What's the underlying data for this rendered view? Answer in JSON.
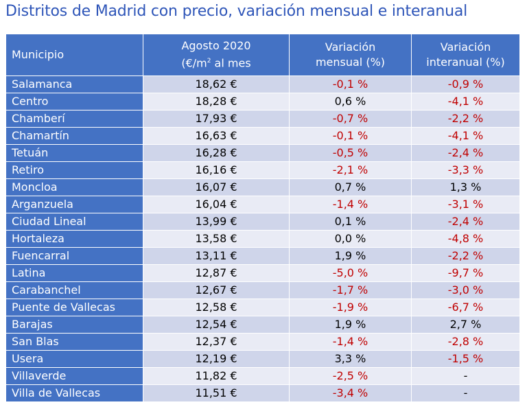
{
  "title": "Distritos de Madrid con precio, variación mensual e interanual",
  "colors": {
    "header_bg": "#4472c4",
    "row_odd_bg": "#cfd5ea",
    "row_even_bg": "#e9ebf5",
    "negative_text": "#c00000",
    "title_text": "#2e55b8"
  },
  "headers": {
    "municipio": "Municipio",
    "precio_line1": "Agosto 2020",
    "precio_line2_pre": "(€/m",
    "precio_line2_sup": "2",
    "precio_line2_post": " al mes",
    "mensual_line1": "Variación",
    "mensual_line2": "mensual (%)",
    "interanual_line1": "Variación",
    "interanual_line2": "interanual (%)"
  },
  "rows": [
    {
      "municipio": "Salamanca",
      "precio": "18,62 €",
      "mensual": "-0,1 %",
      "interanual": "-0,9 %"
    },
    {
      "municipio": "Centro",
      "precio": "18,28 €",
      "mensual": "0,6 %",
      "interanual": "-4,1 %"
    },
    {
      "municipio": "Chamberí",
      "precio": "17,93 €",
      "mensual": "-0,7 %",
      "interanual": "-2,2 %"
    },
    {
      "municipio": "Chamartín",
      "precio": "16,63 €",
      "mensual": "-0,1 %",
      "interanual": "-4,1 %"
    },
    {
      "municipio": "Tetuán",
      "precio": "16,28 €",
      "mensual": "-0,5 %",
      "interanual": "-2,4 %"
    },
    {
      "municipio": "Retiro",
      "precio": "16,16 €",
      "mensual": "-2,1 %",
      "interanual": "-3,3 %"
    },
    {
      "municipio": "Moncloa",
      "precio": "16,07 €",
      "mensual": "0,7 %",
      "interanual": "1,3 %"
    },
    {
      "municipio": "Arganzuela",
      "precio": "16,04 €",
      "mensual": "-1,4 %",
      "interanual": "-3,1 %"
    },
    {
      "municipio": "Ciudad Lineal",
      "precio": "13,99 €",
      "mensual": "0,1 %",
      "interanual": "-2,4 %"
    },
    {
      "municipio": "Hortaleza",
      "precio": "13,58 €",
      "mensual": "0,0 %",
      "interanual": "-4,8 %"
    },
    {
      "municipio": "Fuencarral",
      "precio": "13,11 €",
      "mensual": "1,9 %",
      "interanual": "-2,2 %"
    },
    {
      "municipio": "Latina",
      "precio": "12,87 €",
      "mensual": "-5,0 %",
      "interanual": "-9,7 %"
    },
    {
      "municipio": "Carabanchel",
      "precio": "12,67 €",
      "mensual": "-1,7 %",
      "interanual": "-3,0 %"
    },
    {
      "municipio": "Puente de Vallecas",
      "precio": "12,58 €",
      "mensual": "-1,9 %",
      "interanual": "-6,7 %"
    },
    {
      "municipio": "Barajas",
      "precio": "12,54 €",
      "mensual": "1,9 %",
      "interanual": "2,7 %"
    },
    {
      "municipio": "San Blas",
      "precio": "12,37 €",
      "mensual": "-1,4 %",
      "interanual": "-2,8 %"
    },
    {
      "municipio": "Usera",
      "precio": "12,19 €",
      "mensual": "3,3 %",
      "interanual": "-1,5 %"
    },
    {
      "municipio": "Villaverde",
      "precio": "11,82 €",
      "mensual": "-2,5 %",
      "interanual": "-"
    },
    {
      "municipio": "Villa de Vallecas",
      "precio": "11,51 €",
      "mensual": "-3,4 %",
      "interanual": "-"
    }
  ]
}
